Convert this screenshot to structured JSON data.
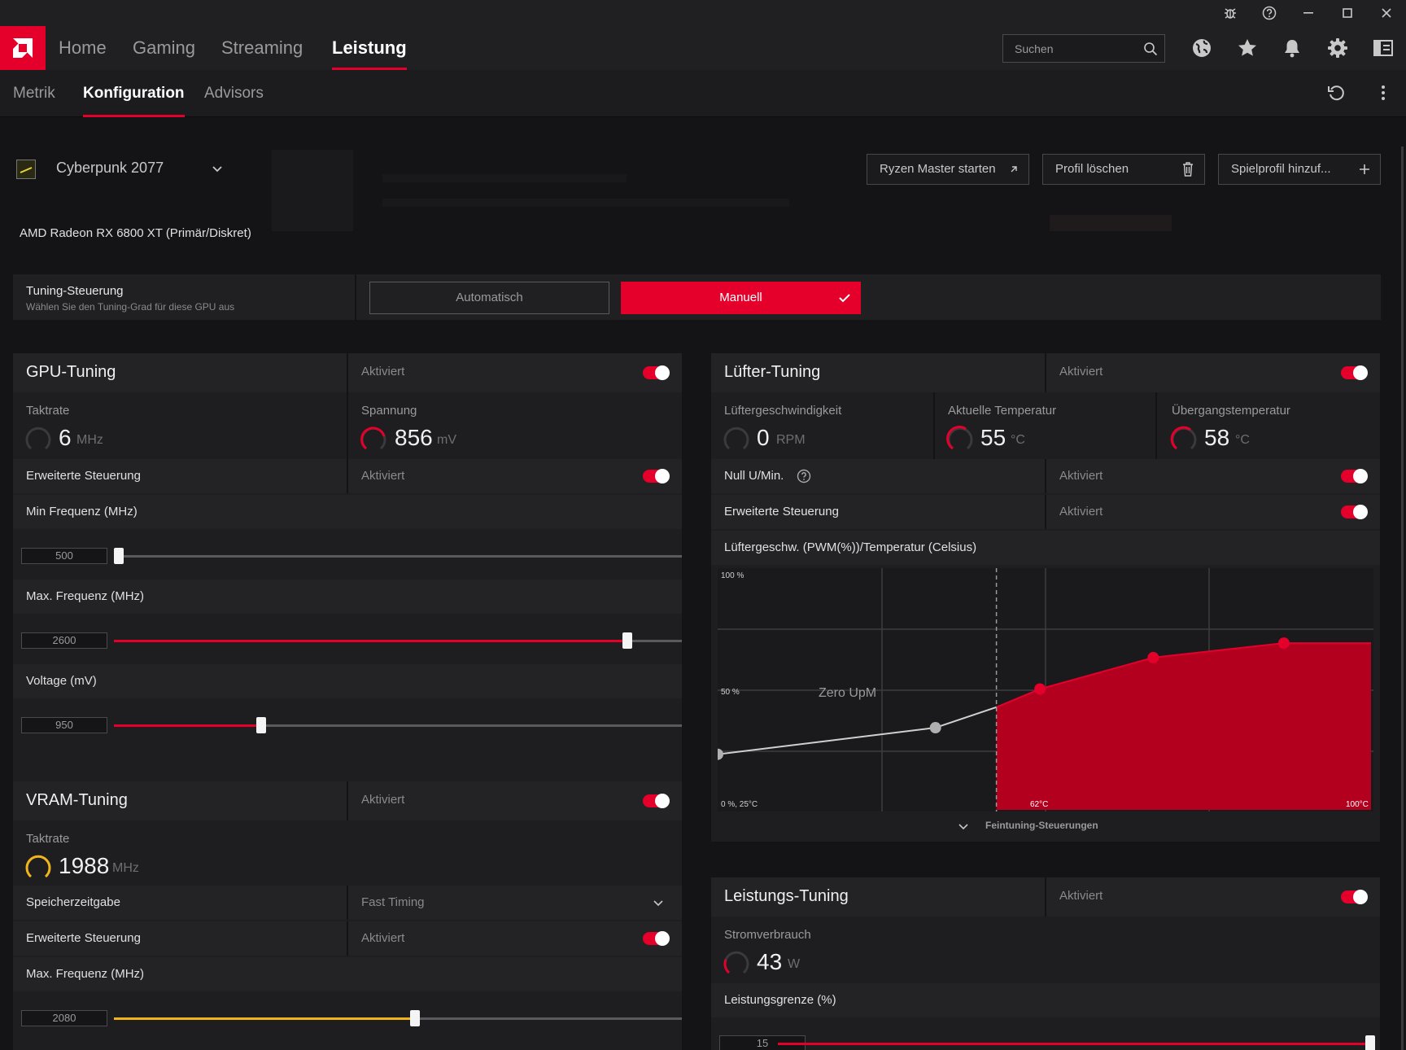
{
  "window": {
    "buttons": [
      "bug-icon",
      "help-icon",
      "minimize-icon",
      "maximize-icon",
      "close-icon"
    ]
  },
  "nav": {
    "tabs": [
      "Home",
      "Gaming",
      "Streaming",
      "Leistung"
    ],
    "active": "Leistung",
    "search_placeholder": "Suchen"
  },
  "subnav": {
    "tabs": [
      "Metrik",
      "Konfiguration",
      "Advisors"
    ],
    "active": "Konfiguration"
  },
  "profile": {
    "game": "Cyberpunk 2077",
    "gpu": "AMD Radeon RX 6800 XT (Primär/Diskret)",
    "buttons": {
      "ryzen": "Ryzen Master starten",
      "delete": "Profil löschen",
      "add": "Spielprofil hinzuf..."
    }
  },
  "tuning_control": {
    "title": "Tuning-Steuerung",
    "subtitle": "Wählen Sie den Tuning-Grad für diese GPU aus",
    "auto": "Automatisch",
    "manual": "Manuell",
    "selected": "Manuell"
  },
  "accent": "#e4002b",
  "status_enabled": "Aktiviert",
  "gpu_tuning": {
    "title": "GPU-Tuning",
    "status": "Aktiviert",
    "clock_label": "Taktrate",
    "clock_value": "6",
    "clock_unit": "MHz",
    "voltage_label": "Spannung",
    "voltage_value": "856",
    "voltage_unit": "mV",
    "advanced_label": "Erweiterte Steuerung",
    "advanced_status": "Aktiviert",
    "min_freq_label": "Min Frequenz (MHz)",
    "min_freq_value": "500",
    "min_freq_fraction": 0.0,
    "max_freq_label": "Max. Frequenz (MHz)",
    "max_freq_value": "2600",
    "max_freq_fraction": 0.904,
    "voltage_slider_label": "Voltage (mV)",
    "voltage_slider_value": "950",
    "voltage_slider_fraction": 0.259
  },
  "vram_tuning": {
    "title": "VRAM-Tuning",
    "status": "Aktiviert",
    "clock_label": "Taktrate",
    "clock_value": "1988",
    "clock_unit": "MHz",
    "timing_label": "Speicherzeitgabe",
    "timing_value": "Fast Timing",
    "advanced_label": "Erweiterte Steuerung",
    "advanced_status": "Aktiviert",
    "max_freq_label": "Max. Frequenz (MHz)",
    "max_freq_value": "2080",
    "max_freq_fraction": 0.53,
    "slider_color": "#f1b51c"
  },
  "fan_tuning": {
    "title": "Lüfter-Tuning",
    "status": "Aktiviert",
    "fan_speed_label": "Lüftergeschwindigkeit",
    "fan_speed_value": "0",
    "fan_speed_unit": "RPM",
    "temp_label": "Aktuelle Temperatur",
    "temp_value": "55",
    "temp_unit": "°C",
    "junction_label": "Übergangstemperatur",
    "junction_value": "58",
    "junction_unit": "°C",
    "zero_rpm_label": "Null U/Min.",
    "zero_rpm_status": "Aktiviert",
    "advanced_label": "Erweiterte Steuerung",
    "advanced_status": "Aktiviert",
    "curve_label": "Lüftergeschw. (PWM(%))/Temperatur (Celsius)",
    "fine_tuning": "Feintuning-Steuerungen"
  },
  "power_tuning": {
    "title": "Leistungs-Tuning",
    "status": "Aktiviert",
    "power_label": "Stromverbrauch",
    "power_value": "43",
    "power_unit": "W",
    "limit_label": "Leistungsgrenze (%)",
    "limit_value": "15",
    "limit_fraction": 1.0
  },
  "chart_data": {
    "type": "area",
    "x": [
      25,
      50,
      57,
      62,
      75,
      90
    ],
    "values": [
      23,
      34,
      42.5,
      50,
      63,
      69
    ],
    "xlim": [
      25,
      100
    ],
    "ylim": [
      0,
      100
    ],
    "y_tick_labels": [
      "100 %",
      "50 %",
      "0 %, 25°C"
    ],
    "x_tick_labels": [
      "62°C",
      "100°C"
    ],
    "annotations": [
      "Zero UpM"
    ],
    "zero_rpm_threshold": 57
  }
}
